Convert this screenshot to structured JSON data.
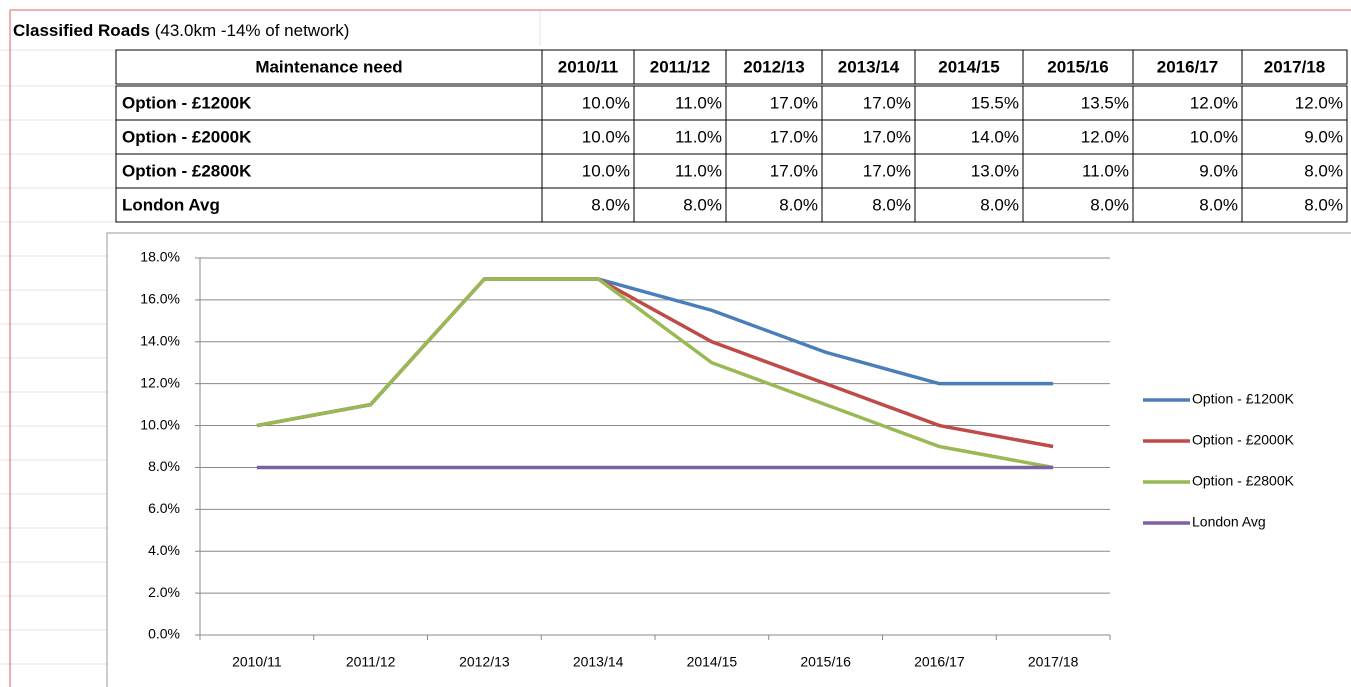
{
  "heading": {
    "title": "Classified Roads",
    "subtitle": "(43.0km -14% of network)"
  },
  "table": {
    "header": [
      "Maintenance need",
      "2010/11",
      "2011/12",
      "2012/13",
      "2013/14",
      "2014/15",
      "2015/16",
      "2016/17",
      "2017/18"
    ],
    "rows": [
      [
        "Option - £1200K",
        "10.0%",
        "11.0%",
        "17.0%",
        "17.0%",
        "15.5%",
        "13.5%",
        "12.0%",
        "12.0%"
      ],
      [
        "Option - £2000K",
        "10.0%",
        "11.0%",
        "17.0%",
        "17.0%",
        "14.0%",
        "12.0%",
        "10.0%",
        "9.0%"
      ],
      [
        "Option - £2800K",
        "10.0%",
        "11.0%",
        "17.0%",
        "17.0%",
        "13.0%",
        "11.0%",
        "9.0%",
        "8.0%"
      ],
      [
        "London Avg",
        "8.0%",
        "8.0%",
        "8.0%",
        "8.0%",
        "8.0%",
        "8.0%",
        "8.0%",
        "8.0%"
      ]
    ]
  },
  "chart_data": {
    "type": "line",
    "categories": [
      "2010/11",
      "2011/12",
      "2012/13",
      "2013/14",
      "2014/15",
      "2015/16",
      "2016/17",
      "2017/18"
    ],
    "series": [
      {
        "name": "Option - £1200K",
        "color": "#4a7ebb",
        "values": [
          10,
          11,
          17,
          17,
          15.5,
          13.5,
          12,
          12
        ]
      },
      {
        "name": "Option - £2000K",
        "color": "#be4b48",
        "values": [
          10,
          11,
          17,
          17,
          14,
          12,
          10,
          9
        ]
      },
      {
        "name": "Option - £2800K",
        "color": "#98b954",
        "values": [
          10,
          11,
          17,
          17,
          13,
          11,
          9,
          8
        ]
      },
      {
        "name": "London Avg",
        "color": "#7d60a0",
        "values": [
          8,
          8,
          8,
          8,
          8,
          8,
          8,
          8
        ]
      }
    ],
    "ylim": [
      0,
      18
    ],
    "yticks": [
      {
        "value": 0,
        "label": "0.0%"
      },
      {
        "value": 2,
        "label": "2.0%"
      },
      {
        "value": 4,
        "label": "4.0%"
      },
      {
        "value": 6,
        "label": "6.0%"
      },
      {
        "value": 8,
        "label": "8.0%"
      },
      {
        "value": 10,
        "label": "10.0%"
      },
      {
        "value": 12,
        "label": "12.0%"
      },
      {
        "value": 14,
        "label": "14.0%"
      },
      {
        "value": 16,
        "label": "16.0%"
      },
      {
        "value": 18,
        "label": "18.0%"
      }
    ],
    "grid": true,
    "legend": "right"
  }
}
